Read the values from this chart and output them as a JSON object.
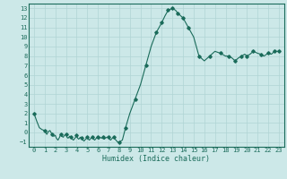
{
  "xlabel": "Humidex (Indice chaleur)",
  "background_color": "#cce8e8",
  "grid_color": "#b0d4d4",
  "line_color": "#1a6b5a",
  "marker_color": "#1a6b5a",
  "xlim": [
    -0.5,
    23.5
  ],
  "ylim": [
    -1.5,
    13.5
  ],
  "yticks": [
    -1,
    0,
    1,
    2,
    3,
    4,
    5,
    6,
    7,
    8,
    9,
    10,
    11,
    12,
    13
  ],
  "xticks": [
    0,
    1,
    2,
    3,
    4,
    5,
    6,
    7,
    8,
    9,
    10,
    11,
    12,
    13,
    14,
    15,
    16,
    17,
    18,
    19,
    20,
    21,
    22,
    23
  ],
  "x": [
    0,
    0.25,
    0.5,
    0.75,
    1.0,
    1.1,
    1.2,
    1.35,
    1.5,
    1.6,
    1.7,
    1.85,
    2.0,
    2.1,
    2.25,
    2.4,
    2.5,
    2.6,
    2.75,
    2.85,
    3.0,
    3.1,
    3.2,
    3.35,
    3.5,
    3.6,
    3.7,
    3.85,
    4.0,
    4.1,
    4.2,
    4.35,
    4.5,
    4.6,
    4.7,
    4.85,
    5.0,
    5.1,
    5.2,
    5.35,
    5.5,
    5.6,
    5.7,
    5.85,
    6.0,
    6.1,
    6.2,
    6.35,
    6.5,
    6.6,
    6.7,
    6.85,
    7.0,
    7.1,
    7.2,
    7.35,
    7.5,
    7.6,
    7.7,
    7.85,
    8.0,
    8.3,
    8.6,
    9.0,
    9.5,
    10.0,
    10.5,
    11.0,
    11.5,
    12.0,
    12.3,
    12.6,
    13.0,
    13.3,
    13.5,
    13.8,
    14.0,
    14.5,
    15.0,
    15.5,
    16.0,
    16.5,
    17.0,
    17.5,
    18.0,
    18.3,
    18.6,
    18.9,
    19.2,
    19.5,
    19.8,
    20.0,
    20.3,
    20.6,
    21.0,
    21.3,
    21.6,
    22.0,
    22.3,
    22.6,
    23.0
  ],
  "y": [
    2.0,
    1.2,
    0.5,
    0.3,
    0.2,
    0.0,
    -0.2,
    0.1,
    0.2,
    0.0,
    -0.2,
    -0.4,
    -0.3,
    -0.6,
    -0.8,
    -0.5,
    -0.2,
    -0.4,
    -0.5,
    -0.3,
    -0.2,
    -0.5,
    -0.6,
    -0.4,
    -0.5,
    -0.7,
    -0.8,
    -0.6,
    -0.3,
    -0.6,
    -0.7,
    -0.5,
    -0.6,
    -0.8,
    -0.9,
    -0.7,
    -0.5,
    -0.7,
    -0.8,
    -0.6,
    -0.5,
    -0.7,
    -0.8,
    -0.6,
    -0.5,
    -0.7,
    -0.5,
    -0.6,
    -0.5,
    -0.7,
    -0.6,
    -0.5,
    -0.5,
    -0.7,
    -0.8,
    -0.6,
    -0.5,
    -0.7,
    -0.8,
    -1.0,
    -1.0,
    -0.8,
    0.5,
    2.0,
    3.5,
    5.0,
    7.0,
    9.0,
    10.5,
    11.5,
    12.2,
    12.8,
    13.0,
    12.8,
    12.5,
    12.2,
    12.0,
    11.0,
    10.0,
    8.0,
    7.5,
    8.0,
    8.5,
    8.3,
    8.0,
    8.0,
    7.8,
    7.5,
    7.8,
    8.0,
    8.2,
    8.0,
    8.2,
    8.5,
    8.3,
    8.2,
    8.0,
    8.3,
    8.2,
    8.5,
    8.5
  ],
  "marker_x": [
    0,
    1.0,
    1.7,
    2.5,
    3.0,
    3.5,
    4.0,
    4.5,
    5.0,
    5.5,
    6.0,
    6.5,
    7.0,
    7.5,
    8.0,
    8.6,
    9.5,
    10.5,
    11.5,
    12.0,
    12.6,
    13.0,
    13.5,
    14.0,
    14.5,
    15.5,
    16.5,
    17.5,
    18.3,
    18.9,
    19.5,
    20.0,
    20.6,
    21.3,
    22.0,
    22.6,
    23.0
  ],
  "marker_y": [
    2.0,
    0.2,
    -0.2,
    -0.2,
    -0.2,
    -0.5,
    -0.3,
    -0.6,
    -0.5,
    -0.5,
    -0.5,
    -0.5,
    -0.5,
    -0.5,
    -1.0,
    0.5,
    3.5,
    7.0,
    10.5,
    11.5,
    12.8,
    13.0,
    12.5,
    12.0,
    11.0,
    8.0,
    8.0,
    8.3,
    8.0,
    7.5,
    8.0,
    8.0,
    8.5,
    8.2,
    8.3,
    8.5,
    8.5
  ]
}
